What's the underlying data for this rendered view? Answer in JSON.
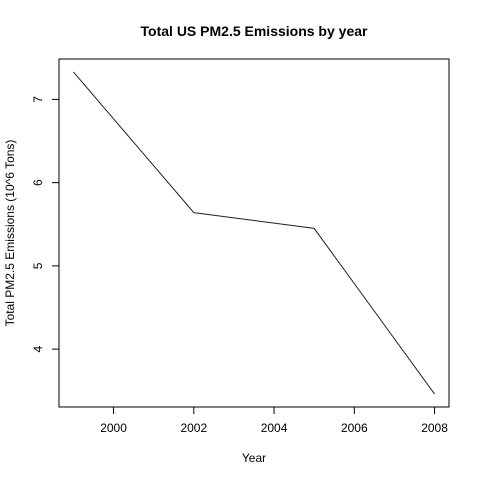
{
  "chart_data": {
    "type": "line",
    "title": "Total US PM2.5 Emissions by year",
    "xlabel": "Year",
    "ylabel": "Total PM2.5 Emissions (10^6 Tons)",
    "x": [
      1999,
      2002,
      2005,
      2008
    ],
    "y": [
      7.33,
      5.64,
      5.45,
      3.46
    ],
    "xlim": [
      1998.64,
      2008.36
    ],
    "ylim": [
      3.3048,
      7.4852
    ],
    "xticks": [
      2000,
      2002,
      2004,
      2006,
      2008
    ],
    "xtick_labels": [
      "2000",
      "2002",
      "2004",
      "2006",
      "2008"
    ],
    "yticks": [
      4,
      5,
      6,
      7
    ],
    "ytick_labels": [
      "4",
      "5",
      "6",
      "7"
    ],
    "grid": false,
    "legend": "none",
    "line_color": "#222222"
  }
}
